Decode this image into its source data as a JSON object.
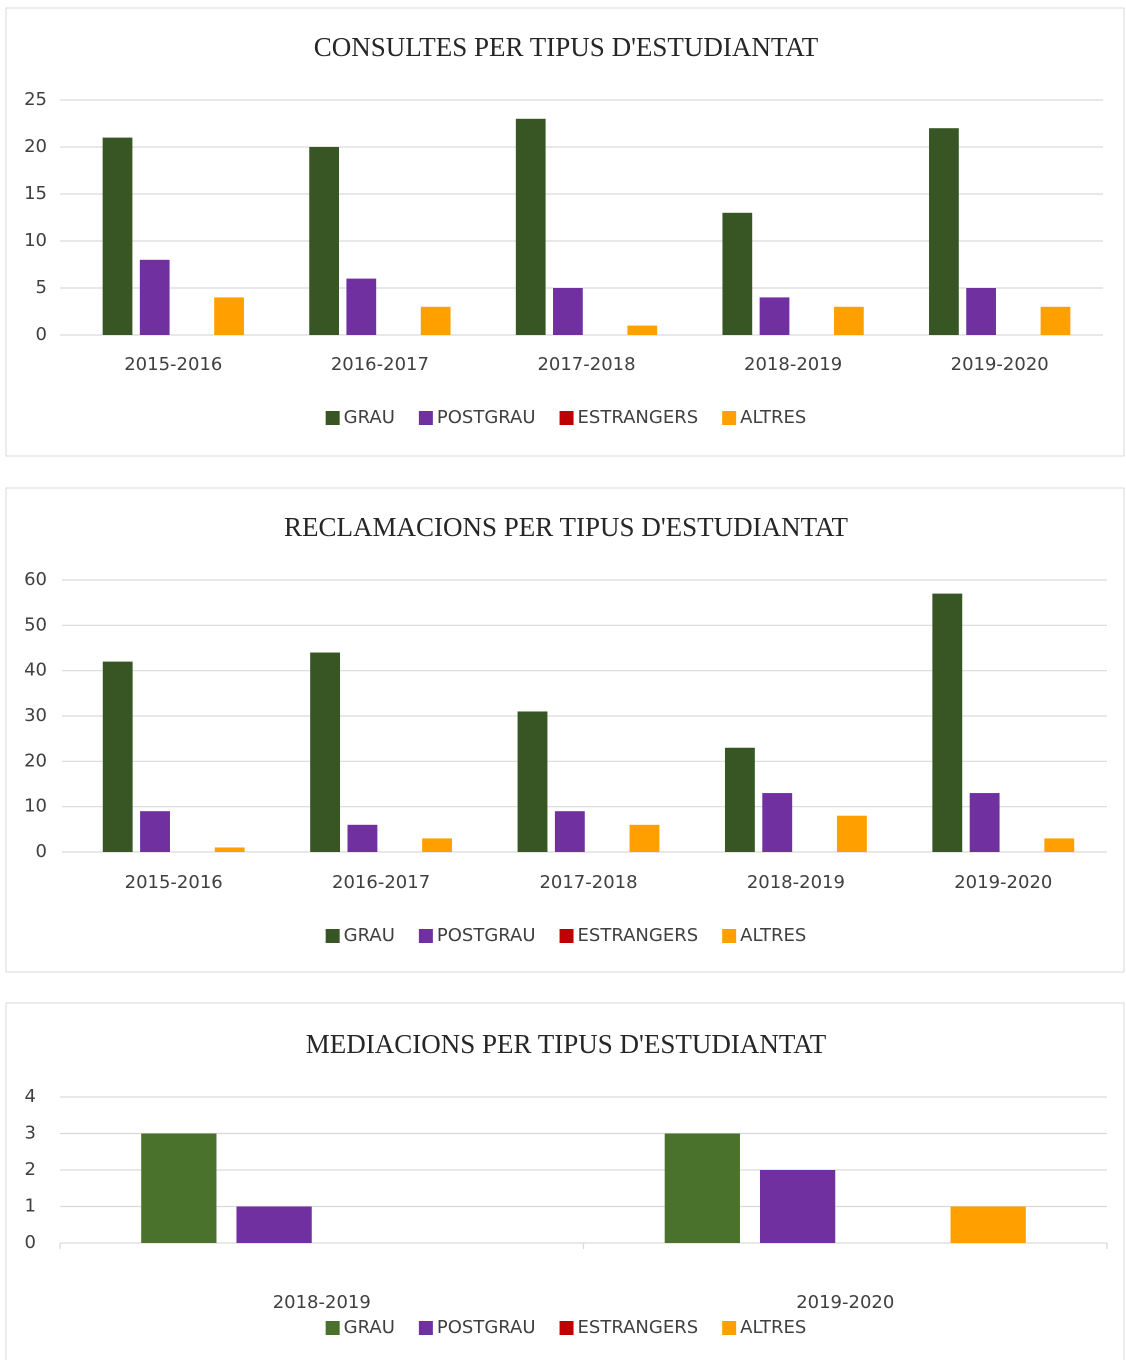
{
  "chart_data": [
    {
      "type": "bar",
      "title": "CONSULTES PER TIPUS D'ESTUDIANTAT",
      "categories": [
        "2015-2016",
        "2016-2017",
        "2017-2018",
        "2018-2019",
        "2019-2020"
      ],
      "series": [
        {
          "name": "GRAU",
          "color": "#375623",
          "values": [
            21,
            20,
            23,
            13,
            22
          ]
        },
        {
          "name": "POSTGRAU",
          "color": "#7030a0",
          "values": [
            8,
            6,
            5,
            4,
            5
          ]
        },
        {
          "name": "ESTRANGERS",
          "color": "#c00000",
          "values": [
            0,
            0,
            0,
            0,
            0
          ]
        },
        {
          "name": "ALTRES",
          "color": "#ffa000",
          "values": [
            4,
            3,
            1,
            3,
            3
          ]
        }
      ],
      "ylim": [
        0,
        25
      ],
      "yticks": [
        0,
        5,
        10,
        15,
        20,
        25
      ],
      "grid": true,
      "legend": "bottom"
    },
    {
      "type": "bar",
      "title": "RECLAMACIONS PER TIPUS D'ESTUDIANTAT",
      "categories": [
        "2015-2016",
        "2016-2017",
        "2017-2018",
        "2018-2019",
        "2019-2020"
      ],
      "series": [
        {
          "name": "GRAU",
          "color": "#375623",
          "values": [
            42,
            44,
            31,
            23,
            57
          ]
        },
        {
          "name": "POSTGRAU",
          "color": "#7030a0",
          "values": [
            9,
            6,
            9,
            13,
            13
          ]
        },
        {
          "name": "ESTRANGERS",
          "color": "#c00000",
          "values": [
            0,
            0,
            0,
            0,
            0
          ]
        },
        {
          "name": "ALTRES",
          "color": "#ffa000",
          "values": [
            1,
            3,
            6,
            8,
            3
          ]
        }
      ],
      "ylim": [
        0,
        60
      ],
      "yticks": [
        0,
        10,
        20,
        30,
        40,
        50,
        60
      ],
      "grid": true,
      "legend": "bottom"
    },
    {
      "type": "bar",
      "title": "MEDIACIONS PER TIPUS D'ESTUDIANTAT",
      "categories": [
        "2018-2019",
        "2019-2020"
      ],
      "series": [
        {
          "name": "GRAU",
          "color": "#4a722c",
          "values": [
            3,
            3
          ]
        },
        {
          "name": "POSTGRAU",
          "color": "#7030a0",
          "values": [
            1,
            2
          ]
        },
        {
          "name": "ESTRANGERS",
          "color": "#c00000",
          "values": [
            0,
            0
          ]
        },
        {
          "name": "ALTRES",
          "color": "#ffa000",
          "values": [
            0,
            1
          ]
        }
      ],
      "ylim": [
        0,
        4
      ],
      "yticks": [
        0,
        1,
        2,
        3,
        4
      ],
      "grid": true,
      "legend": "bottom"
    }
  ]
}
